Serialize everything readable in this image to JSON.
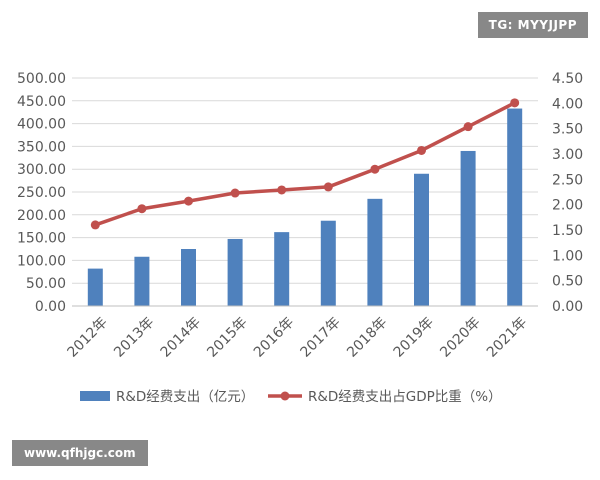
{
  "watermarks": {
    "top": "TG: MYYJJPP",
    "bottom": "www.qfhjgc.com"
  },
  "colors": {
    "bar": "#4f81bd",
    "line": "#c0504d",
    "grid": "#d9d9d9",
    "text": "#595959"
  },
  "chart_data": {
    "type": "bar",
    "categories": [
      "2012年",
      "2013年",
      "2014年",
      "2015年",
      "2016年",
      "2017年",
      "2018年",
      "2019年",
      "2020年",
      "2021年"
    ],
    "series": [
      {
        "name": "R&D经费支出（亿元）",
        "kind": "bar",
        "axis": "left",
        "values": [
          82,
          108,
          125,
          147,
          162,
          187,
          235,
          290,
          340,
          433
        ]
      },
      {
        "name": "R&D经费支出占GDP比重（%）",
        "kind": "line",
        "axis": "right",
        "values": [
          1.6,
          1.92,
          2.07,
          2.23,
          2.29,
          2.35,
          2.7,
          3.07,
          3.54,
          4.01
        ]
      }
    ],
    "y_left": {
      "ylim": [
        0,
        500
      ],
      "ticks": [
        "0.00",
        "50.00",
        "100.00",
        "150.00",
        "200.00",
        "250.00",
        "300.00",
        "350.00",
        "400.00",
        "450.00",
        "500.00"
      ]
    },
    "y_right": {
      "ylim": [
        0,
        4.5
      ],
      "ticks": [
        "0.00",
        "0.50",
        "1.00",
        "1.50",
        "2.00",
        "2.50",
        "3.00",
        "3.50",
        "4.00",
        "4.50"
      ]
    },
    "grid": true,
    "legend_position": "bottom"
  }
}
